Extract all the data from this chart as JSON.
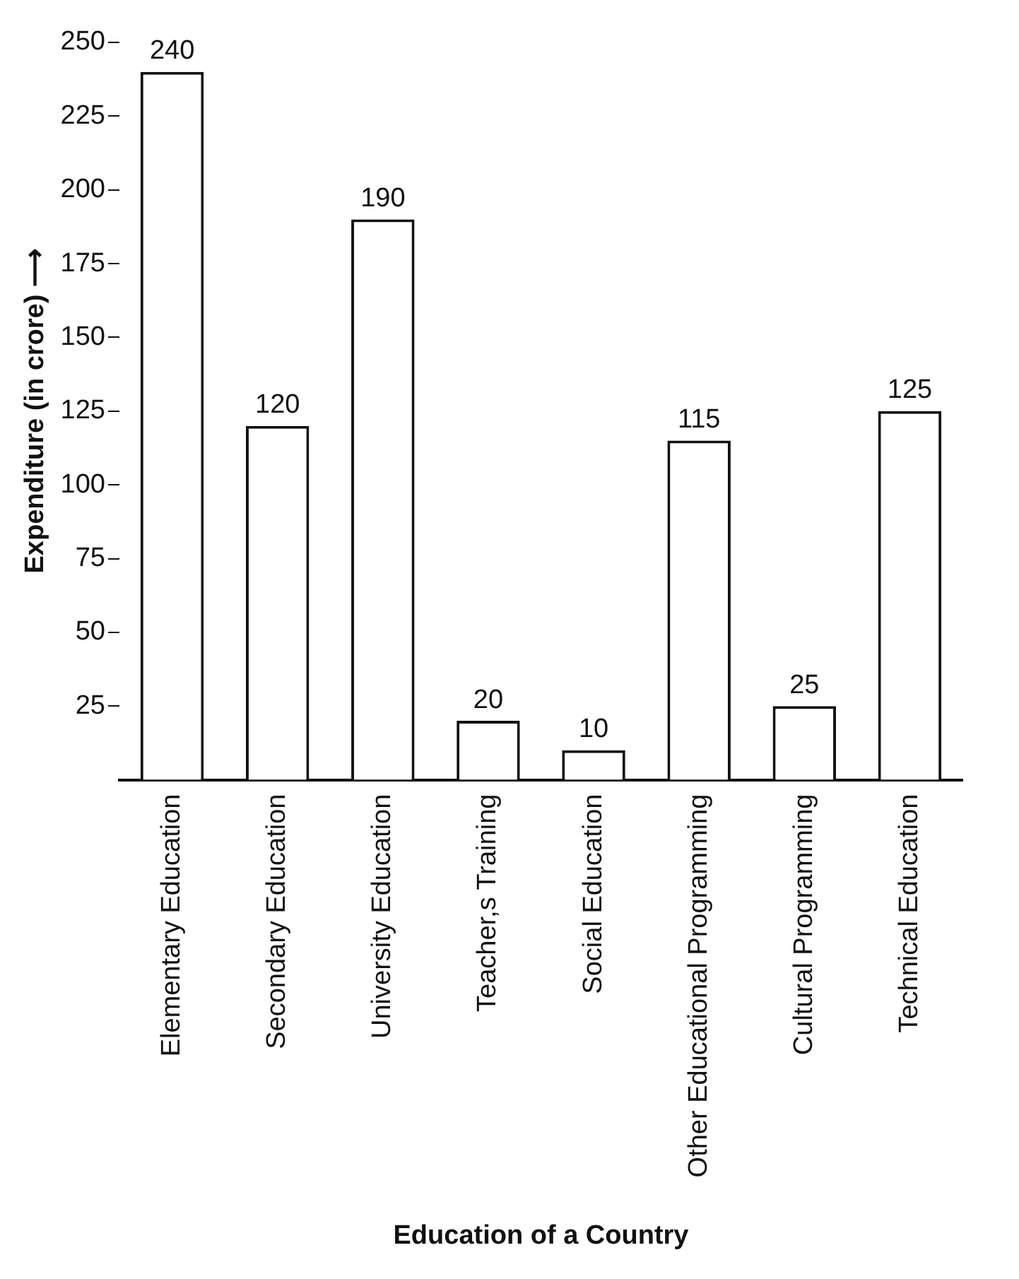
{
  "chart_data": {
    "type": "bar",
    "xlabel": "Education of a Country",
    "ylabel": "Expenditure (in crore) ⟶",
    "categories": [
      "Elementary Education",
      "Secondary Education",
      "University Education",
      "Teacher,s Training",
      "Social Education",
      "Other Educational Programming",
      "Cultural Programming",
      "Technical Education"
    ],
    "values": [
      240,
      120,
      190,
      20,
      10,
      115,
      25,
      125
    ],
    "color": "#ffffff",
    "ylim": [
      0,
      250
    ],
    "yticks": [
      25,
      50,
      75,
      100,
      125,
      150,
      175,
      200,
      225,
      250
    ],
    "data_labels": true,
    "grid": false,
    "legend": false
  }
}
